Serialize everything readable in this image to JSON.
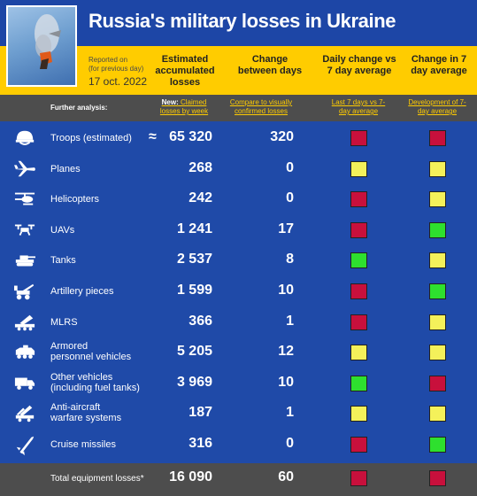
{
  "header": {
    "title": "Russia's military losses in Ukraine",
    "reported_on": "Reported on",
    "reported_note": "(for previous day)",
    "date": "17 oct. 2022",
    "col_total": "Estimated accumulated losses",
    "col_change": "Change between days",
    "col_daily": "Daily change vs 7 day average",
    "col_avg": "Change in 7 day average"
  },
  "analysis": {
    "label": "Further analysis:",
    "link1_prefix": "New:",
    "link1": "Claimed losses by week",
    "link2": "Compare to visually confirmed losses",
    "link3": "Last 7 days vs 7-day average",
    "link4": "Development of 7-day average"
  },
  "colors": {
    "red": "#c8103c",
    "yellow": "#f4f15a",
    "green": "#2ee02e",
    "background": "#1f4aa8",
    "header_yellow": "#ffcc00",
    "gray": "#4d4d4d"
  },
  "rows": [
    {
      "icon": "helmet-icon",
      "label": "Troops (estimated)",
      "approx": "≈",
      "total": "65 320",
      "change": "320",
      "daily": "red",
      "avg": "red"
    },
    {
      "icon": "plane-icon",
      "label": "Planes",
      "total": "268",
      "change": "0",
      "daily": "yellow",
      "avg": "yellow"
    },
    {
      "icon": "helicopter-icon",
      "label": "Helicopters",
      "total": "242",
      "change": "0",
      "daily": "red",
      "avg": "yellow"
    },
    {
      "icon": "drone-icon",
      "label": "UAVs",
      "total": "1 241",
      "change": "17",
      "daily": "red",
      "avg": "green"
    },
    {
      "icon": "tank-icon",
      "label": "Tanks",
      "total": "2 537",
      "change": "8",
      "daily": "green",
      "avg": "yellow"
    },
    {
      "icon": "artillery-icon",
      "label": "Artillery pieces",
      "total": "1 599",
      "change": "10",
      "daily": "red",
      "avg": "green"
    },
    {
      "icon": "rocket-launcher-icon",
      "label": "MLRS",
      "total": "366",
      "change": "1",
      "daily": "red",
      "avg": "yellow"
    },
    {
      "icon": "apc-icon",
      "label": "Armored personnel vehicles",
      "label1": "Armored",
      "label2": "personnel vehicles",
      "total": "5 205",
      "change": "12",
      "daily": "yellow",
      "avg": "yellow"
    },
    {
      "icon": "truck-icon",
      "label": "Other vehicles (including fuel tanks)",
      "label1": "Other vehicles",
      "label2": "(including fuel tanks)",
      "total": "3 969",
      "change": "10",
      "daily": "green",
      "avg": "red"
    },
    {
      "icon": "anti-aircraft-icon",
      "label": "Anti-aircraft warfare systems",
      "label1": "Anti-aircraft",
      "label2": "warfare systems",
      "total": "187",
      "change": "1",
      "daily": "yellow",
      "avg": "yellow"
    },
    {
      "icon": "missile-icon",
      "label": "Cruise missiles",
      "total": "316",
      "change": "0",
      "daily": "red",
      "avg": "green"
    }
  ],
  "total_row": {
    "label": "Total equipment losses*",
    "total": "16 090",
    "change": "60",
    "daily": "red",
    "avg": "red"
  }
}
